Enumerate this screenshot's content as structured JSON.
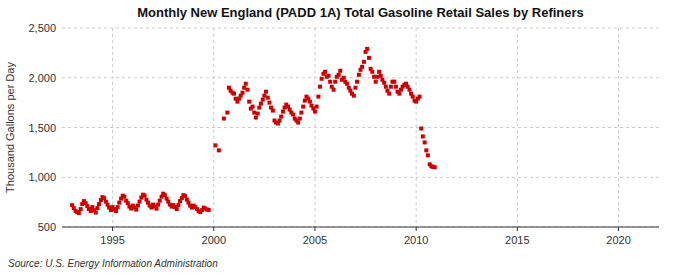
{
  "chart_data": {
    "type": "scatter",
    "title": "Monthly New England (PADD 1A) Total Gasoline Retail Sales by Refiners",
    "ylabel": "Thousand Gallons per Day",
    "source": "Source: U.S. Energy Information Administration",
    "color": "#cc0000",
    "marker": "square",
    "grid": true,
    "xlim": [
      1992.5,
      2022
    ],
    "ylim": [
      500,
      2500
    ],
    "xticks": [
      1995,
      2000,
      2005,
      2010,
      2015,
      2020
    ],
    "yticks": [
      500,
      {
        "value": 1000,
        "label": "1,000"
      },
      {
        "value": 1500,
        "label": "1,500"
      },
      {
        "value": 2000,
        "label": "2,000"
      },
      {
        "value": 2500,
        "label": "2,500"
      }
    ],
    "x": [
      1993.0,
      1993.08,
      1993.17,
      1993.25,
      1993.33,
      1993.42,
      1993.5,
      1993.58,
      1993.67,
      1993.75,
      1993.83,
      1993.92,
      1994.0,
      1994.08,
      1994.17,
      1994.25,
      1994.33,
      1994.42,
      1994.5,
      1994.58,
      1994.67,
      1994.75,
      1994.83,
      1994.92,
      1995.0,
      1995.08,
      1995.17,
      1995.25,
      1995.33,
      1995.42,
      1995.5,
      1995.58,
      1995.67,
      1995.75,
      1995.83,
      1995.92,
      1996.0,
      1996.08,
      1996.17,
      1996.25,
      1996.33,
      1996.42,
      1996.5,
      1996.58,
      1996.67,
      1996.75,
      1996.83,
      1996.92,
      1997.0,
      1997.08,
      1997.17,
      1997.25,
      1997.33,
      1997.42,
      1997.5,
      1997.58,
      1997.67,
      1997.75,
      1997.83,
      1997.92,
      1998.0,
      1998.08,
      1998.17,
      1998.25,
      1998.33,
      1998.42,
      1998.5,
      1998.58,
      1998.67,
      1998.75,
      1998.83,
      1998.92,
      1999.0,
      1999.08,
      1999.17,
      1999.25,
      1999.33,
      1999.42,
      1999.5,
      1999.58,
      1999.67,
      1999.75,
      2000.08,
      2000.25,
      2000.5,
      2000.67,
      2000.75,
      2000.83,
      2000.92,
      2001.0,
      2001.08,
      2001.17,
      2001.25,
      2001.33,
      2001.42,
      2001.5,
      2001.58,
      2001.67,
      2001.75,
      2001.83,
      2001.92,
      2002.0,
      2002.08,
      2002.17,
      2002.25,
      2002.33,
      2002.42,
      2002.5,
      2002.58,
      2002.67,
      2002.75,
      2002.83,
      2002.92,
      2003.0,
      2003.08,
      2003.17,
      2003.25,
      2003.33,
      2003.42,
      2003.5,
      2003.58,
      2003.67,
      2003.75,
      2003.83,
      2003.92,
      2004.0,
      2004.08,
      2004.17,
      2004.25,
      2004.33,
      2004.42,
      2004.5,
      2004.58,
      2004.67,
      2004.75,
      2004.83,
      2004.92,
      2005.0,
      2005.08,
      2005.17,
      2005.25,
      2005.33,
      2005.42,
      2005.5,
      2005.58,
      2005.67,
      2005.75,
      2005.83,
      2005.92,
      2006.0,
      2006.08,
      2006.17,
      2006.25,
      2006.33,
      2006.42,
      2006.5,
      2006.58,
      2006.67,
      2006.75,
      2006.83,
      2006.92,
      2007.0,
      2007.08,
      2007.17,
      2007.25,
      2007.33,
      2007.42,
      2007.5,
      2007.58,
      2007.67,
      2007.75,
      2007.83,
      2007.92,
      2008.0,
      2008.08,
      2008.17,
      2008.25,
      2008.33,
      2008.42,
      2008.5,
      2008.58,
      2008.67,
      2008.75,
      2008.83,
      2008.92,
      2009.0,
      2009.08,
      2009.17,
      2009.25,
      2009.33,
      2009.42,
      2009.5,
      2009.58,
      2009.67,
      2009.75,
      2009.83,
      2009.92,
      2010.0,
      2010.08,
      2010.17,
      2010.25,
      2010.33,
      2010.42,
      2010.5,
      2010.58,
      2010.67,
      2010.75,
      2010.83,
      2010.92
    ],
    "values": [
      720,
      690,
      660,
      650,
      640,
      680,
      730,
      760,
      740,
      710,
      680,
      660,
      700,
      670,
      645,
      690,
      730,
      770,
      800,
      790,
      755,
      725,
      695,
      670,
      700,
      680,
      660,
      700,
      745,
      785,
      815,
      805,
      765,
      740,
      705,
      685,
      715,
      695,
      675,
      715,
      755,
      795,
      825,
      815,
      775,
      745,
      715,
      695,
      725,
      705,
      685,
      725,
      765,
      805,
      835,
      820,
      785,
      755,
      725,
      705,
      720,
      700,
      680,
      720,
      760,
      790,
      820,
      810,
      775,
      745,
      715,
      695,
      715,
      700,
      680,
      660,
      650,
      670,
      695,
      685,
      675,
      672,
      1320,
      1270,
      1590,
      1650,
      1900,
      1870,
      1850,
      1840,
      1790,
      1760,
      1790,
      1820,
      1850,
      1900,
      1940,
      1880,
      1760,
      1690,
      1710,
      1650,
      1600,
      1640,
      1700,
      1740,
      1780,
      1820,
      1860,
      1800,
      1750,
      1700,
      1670,
      1570,
      1550,
      1540,
      1570,
      1610,
      1660,
      1700,
      1730,
      1710,
      1680,
      1650,
      1630,
      1590,
      1570,
      1550,
      1590,
      1650,
      1710,
      1770,
      1810,
      1790,
      1760,
      1720,
      1690,
      1660,
      1710,
      1810,
      1910,
      1990,
      2040,
      2060,
      2010,
      2020,
      1960,
      1910,
      1880,
      1960,
      2010,
      2030,
      2070,
      1980,
      2000,
      1960,
      1940,
      1900,
      1870,
      1840,
      1820,
      1900,
      1960,
      2030,
      2080,
      2110,
      2160,
      2260,
      2290,
      2200,
      2090,
      2060,
      2010,
      1960,
      2010,
      2060,
      2020,
      1980,
      1950,
      1910,
      1870,
      1840,
      1910,
      1960,
      1960,
      1910,
      1860,
      1840,
      1880,
      1910,
      1930,
      1940,
      1910,
      1880,
      1840,
      1810,
      1770,
      1760,
      1790,
      1810,
      1490,
      1410,
      1350,
      1270,
      1220,
      1130,
      1110,
      1105,
      1100
    ]
  }
}
